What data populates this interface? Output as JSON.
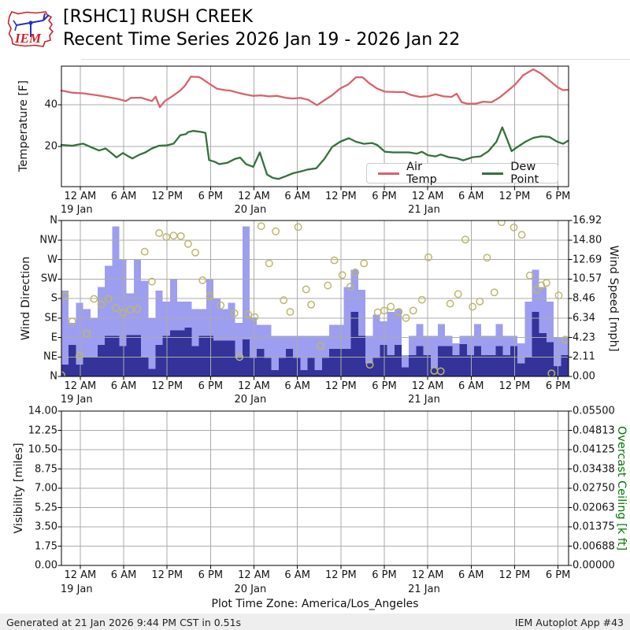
{
  "header": {
    "logo_text": "IEM",
    "title_line1": "[RSHC1] RUSH CREEK",
    "title_line2": "Recent Time Series 2026 Jan 19 - 2026 Jan 22"
  },
  "footer": {
    "timezone_note": "Plot Time Zone: America/Los_Angeles",
    "generated": "Generated at 21 Jan 2026 9:44 PM CST in 0.51s",
    "app": "IEM Autoplot App #43"
  },
  "colors": {
    "air_temp": "#d9626b",
    "dew_point": "#35713c",
    "bar_light": "#9e9ef0",
    "bar_dark": "#333399",
    "wind_marker": "#bdb76b",
    "grid": "#ababab",
    "spine": "#000000",
    "overcast_label": "#007700",
    "footer_bg": "#eeeeee",
    "logo_red": "#cc2229",
    "logo_blue": "#2233bb"
  },
  "time_axis": {
    "domain_hours": [
      0,
      70.06
    ],
    "tick_hours": [
      2.6,
      8.6,
      14.6,
      20.6,
      26.6,
      32.6,
      38.6,
      44.6,
      50.6,
      56.6,
      62.6,
      68.6
    ],
    "tick_labels": [
      "12 AM",
      "6 AM",
      "12 PM",
      "6 PM",
      "12 AM",
      "6 AM",
      "12 PM",
      "6 PM",
      "12 AM",
      "6 AM",
      "12 PM",
      "6 PM"
    ],
    "date_ticks": [
      {
        "hour": 2.6,
        "label": "19 Jan"
      },
      {
        "hour": 26.6,
        "label": "20 Jan"
      },
      {
        "hour": 50.6,
        "label": "21 Jan"
      }
    ]
  },
  "chart_data": [
    {
      "type": "line",
      "panel": "temperature",
      "ylabel": "Temperature [F]",
      "ylim": [
        0.8,
        58.5
      ],
      "yticks": [
        {
          "v": 20,
          "label": "20"
        },
        {
          "v": 40,
          "label": "40"
        }
      ],
      "legend_entries": [
        "Air Temp",
        "Dew Point"
      ],
      "series": [
        {
          "name": "Air Temp",
          "color_key": "air_temp",
          "x": [
            0,
            1.5,
            3,
            5,
            6.1,
            7.8,
            8.9,
            9.6,
            11,
            11.9,
            12.5,
            13,
            13.6,
            14.3,
            15.4,
            16.4,
            17.1,
            17.9,
            19,
            19.5,
            20.5,
            21.5,
            22.6,
            23.3,
            24.4,
            25.5,
            26.5,
            27.6,
            28.7,
            29.8,
            31,
            32,
            33,
            34.1,
            35.3,
            36.3,
            37.4,
            38.5,
            39.6,
            40.7,
            41.6,
            42.5,
            43.6,
            44.7,
            46.2,
            47.3,
            48.4,
            49.5,
            50.6,
            51.7,
            52.8,
            53.9,
            54.6,
            55.3,
            56.1,
            57.2,
            58.3,
            59.4,
            60.5,
            61.6,
            62.7,
            63.8,
            65.2,
            66.3,
            67.4,
            68.5,
            69.3,
            70
          ],
          "y": [
            46.8,
            45.8,
            45.5,
            44.5,
            43.9,
            42.8,
            41.8,
            43.3,
            43.4,
            42.4,
            41.8,
            43.9,
            38.9,
            41.8,
            44.3,
            46.8,
            49.3,
            53.5,
            53.3,
            52.3,
            49.9,
            47.7,
            47,
            46.8,
            45.8,
            44.9,
            44.3,
            44.5,
            44,
            44.3,
            43.3,
            43,
            43.3,
            42.4,
            39.8,
            42.1,
            44.6,
            47.8,
            49.7,
            53.2,
            53.2,
            50.4,
            47.8,
            46.3,
            46.1,
            46.1,
            44.6,
            43.8,
            44,
            45,
            44,
            43.8,
            45.3,
            41.2,
            40.5,
            40.5,
            41.5,
            41.2,
            43.4,
            46.5,
            49.7,
            54.2,
            57,
            54.8,
            51.7,
            48.5,
            47,
            47.2
          ]
        },
        {
          "name": "Dew Point",
          "color_key": "dew_point",
          "x": [
            0,
            1.5,
            3,
            4.3,
            5.2,
            6.1,
            7,
            7.6,
            8.5,
            9.2,
            9.8,
            10.7,
            11.6,
            12.5,
            13.5,
            14.6,
            15.5,
            16.4,
            17.2,
            17.5,
            18.2,
            19.5,
            19.9,
            20.4,
            21.1,
            21.8,
            22.9,
            24,
            24.7,
            25.5,
            26.5,
            27.4,
            28.4,
            29.2,
            30,
            31,
            32,
            33,
            34,
            35.2,
            36.3,
            37.4,
            38.5,
            39.7,
            40.7,
            41.8,
            42.9,
            43.6,
            44.7,
            45.8,
            47,
            48,
            49.1,
            49.8,
            50.6,
            51.7,
            52.4,
            53.5,
            54.6,
            55.5,
            56.8,
            57.9,
            59,
            60.1,
            60.9,
            61.4,
            62.2,
            63,
            64.1,
            65.2,
            66.3,
            67.4,
            68.5,
            69.3,
            70
          ],
          "y": [
            20.8,
            20.4,
            21.4,
            19.4,
            18.1,
            19.1,
            16.6,
            14.8,
            16.9,
            15.4,
            14.3,
            16,
            17.2,
            19.1,
            20.4,
            20.6,
            21.4,
            25.4,
            26,
            26.9,
            27.5,
            26.9,
            26.5,
            13.5,
            12.8,
            11.6,
            12.2,
            14.1,
            14.7,
            11.6,
            10.3,
            17.2,
            6.6,
            5,
            4.5,
            5.8,
            7.2,
            8,
            9,
            9.6,
            14,
            19.8,
            22.3,
            24,
            22.3,
            21.3,
            21.7,
            20.8,
            17.5,
            17.2,
            17.2,
            17.2,
            16.6,
            17.5,
            15.9,
            15.3,
            16.2,
            14.9,
            14.4,
            13.4,
            14.9,
            15.3,
            17.8,
            22.3,
            29.2,
            24.9,
            17.8,
            19.8,
            22.3,
            24.2,
            24.9,
            24.6,
            22.3,
            21.3,
            22.8
          ]
        }
      ]
    },
    {
      "type": "bar+scatter",
      "panel": "wind",
      "ylabel_left": "Wind Direction",
      "ylabel_right": "Wind Speed [mph]",
      "yticks_left_labels": [
        "N",
        "NE",
        "E",
        "SE",
        "S",
        "SW",
        "W",
        "NW",
        "N"
      ],
      "yticks_left_degrees": [
        0,
        45,
        90,
        135,
        180,
        225,
        270,
        315,
        360
      ],
      "yticks_right_labels": [
        "0.00",
        "2.11",
        "4.23",
        "6.34",
        "8.46",
        "10.57",
        "12.69",
        "14.80",
        "16.92"
      ],
      "speed_axis_max_mph": 16.92,
      "bars": {
        "unit": "mph",
        "hour_start": 0,
        "hour_step": 1,
        "light_purple_values": [
          9.3,
          5.8,
          8,
          7.3,
          6.3,
          9.7,
          12,
          16.3,
          12.7,
          9,
          12.7,
          10.4,
          6.3,
          9.3,
          8.1,
          10.6,
          8.1,
          8.1,
          7.3,
          7.3,
          10.5,
          8.4,
          7.3,
          8,
          5.8,
          16.3,
          6.4,
          5.6,
          5.6,
          4.4,
          4.4,
          4.4,
          4.4,
          4.4,
          4.4,
          4.4,
          4.4,
          5.6,
          5.6,
          9.7,
          11.6,
          9.4,
          4.4,
          6.7,
          6,
          7,
          7.3,
          2.3,
          4.4,
          5.7,
          4.4,
          4.4,
          5.7,
          4.4,
          3.6,
          4.4,
          4.4,
          5.7,
          4.4,
          4.4,
          5.7,
          4.4,
          4.4,
          3.6,
          8.1,
          11.6,
          9.7,
          8.1,
          4.2,
          4.2
        ],
        "dark_navy_values": [
          1.3,
          3.4,
          1.3,
          2.1,
          2.1,
          3.4,
          4.4,
          4.4,
          3.3,
          4.5,
          4.5,
          2.1,
          0.8,
          3.4,
          4.4,
          5,
          5,
          5.3,
          3.3,
          4.4,
          4.4,
          3.9,
          3.9,
          3.9,
          2,
          4,
          2,
          3,
          2,
          0.7,
          2,
          3,
          2,
          0.7,
          2,
          0.7,
          2,
          3,
          3,
          3,
          7,
          4.4,
          1.4,
          2,
          3.4,
          2.3,
          3.4,
          1,
          2.3,
          3.3,
          2.3,
          0.9,
          3.3,
          3.3,
          2.3,
          3.5,
          2.3,
          3.3,
          2.3,
          2.3,
          3.3,
          2.3,
          3.3,
          1.4,
          2.1,
          7,
          4.7,
          3.7,
          1.1,
          2.3
        ]
      },
      "direction_markers_hour_deg": [
        [
          0,
          3
        ],
        [
          0.5,
          186
        ],
        [
          1.5,
          127
        ],
        [
          2.5,
          48
        ],
        [
          3.5,
          99
        ],
        [
          4.5,
          179
        ],
        [
          5.5,
          166
        ],
        [
          6.5,
          179
        ],
        [
          7.5,
          158
        ],
        [
          8.5,
          147
        ],
        [
          9.5,
          154
        ],
        [
          10.5,
          156
        ],
        [
          11.5,
          288
        ],
        [
          12.5,
          219
        ],
        [
          13.5,
          331
        ],
        [
          14.5,
          322
        ],
        [
          15.5,
          325
        ],
        [
          16.5,
          324
        ],
        [
          17.5,
          306
        ],
        [
          18.5,
          286
        ],
        [
          19.5,
          222
        ],
        [
          20.5,
          185
        ],
        [
          22,
          164
        ],
        [
          23.9,
          146
        ],
        [
          24.6,
          45
        ],
        [
          25.8,
          143
        ],
        [
          26.7,
          137
        ],
        [
          27.6,
          347
        ],
        [
          28.7,
          261
        ],
        [
          29.6,
          335
        ],
        [
          30.7,
          176
        ],
        [
          31.6,
          149
        ],
        [
          32.7,
          345
        ],
        [
          33.8,
          201
        ],
        [
          34.5,
          166
        ],
        [
          35.8,
          70
        ],
        [
          36.8,
          210
        ],
        [
          37.7,
          268
        ],
        [
          38.8,
          234
        ],
        [
          39.9,
          207
        ],
        [
          40.6,
          240
        ],
        [
          41.8,
          261
        ],
        [
          42.6,
          27
        ],
        [
          43.7,
          148
        ],
        [
          44.6,
          152
        ],
        [
          45.5,
          161
        ],
        [
          46.6,
          149
        ],
        [
          47.6,
          135
        ],
        [
          48.6,
          152
        ],
        [
          49.8,
          177
        ],
        [
          50.7,
          275
        ],
        [
          51.5,
          13
        ],
        [
          52.4,
          12
        ],
        [
          53.7,
          168
        ],
        [
          54.8,
          190
        ],
        [
          55.8,
          316
        ],
        [
          56.8,
          161
        ],
        [
          57.8,
          173
        ],
        [
          58.8,
          274
        ],
        [
          59.8,
          194
        ],
        [
          60.8,
          356
        ],
        [
          62.5,
          344
        ],
        [
          63.6,
          327
        ],
        [
          64.7,
          233
        ],
        [
          65.7,
          200
        ],
        [
          66.3,
          210
        ],
        [
          67,
          216
        ],
        [
          67.7,
          7
        ],
        [
          68.7,
          187
        ],
        [
          69.6,
          85
        ]
      ]
    },
    {
      "type": "line",
      "panel": "visibility",
      "ylabel_left": "Visibility [miles]",
      "ylabel_right": "Overcast Ceiling [k ft]",
      "yticks_left_labels": [
        "0.00",
        "1.75",
        "3.50",
        "5.25",
        "7.00",
        "8.75",
        "10.50",
        "12.25",
        "14.00"
      ],
      "yticks_right_labels": [
        "0.00000",
        "0.00688",
        "0.01375",
        "0.02063",
        "0.02750",
        "0.03438",
        "0.04125",
        "0.04813",
        "0.05500"
      ],
      "series": []
    }
  ]
}
